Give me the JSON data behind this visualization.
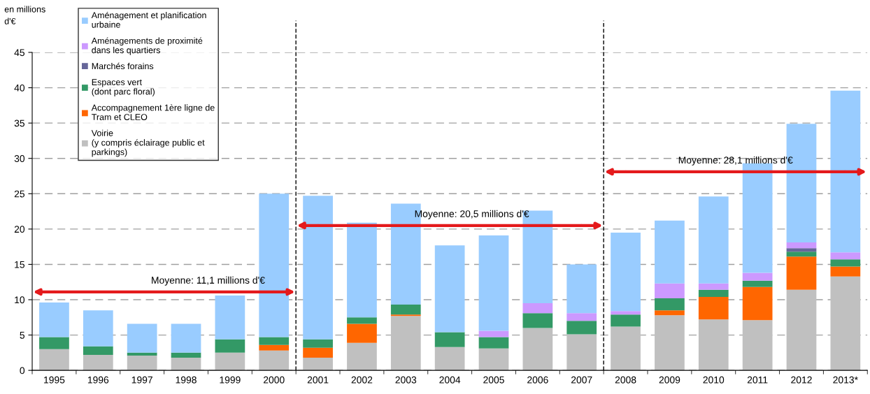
{
  "chart_data": {
    "type": "bar",
    "stacked": true,
    "ylabel": "en millions\nd'€",
    "categories": [
      "1995",
      "1996",
      "1997",
      "1998",
      "1999",
      "2000",
      "2001",
      "2002",
      "2003",
      "2004",
      "2005",
      "2006",
      "2007",
      "2008",
      "2009",
      "2010",
      "2011",
      "2012",
      "2013*"
    ],
    "series": [
      {
        "name": "Voirie\n(y compris éclairage public et\nparkings)",
        "color": "#c0c0c0",
        "values": [
          3.0,
          2.2,
          2.1,
          1.8,
          2.5,
          2.8,
          1.8,
          3.9,
          7.7,
          3.3,
          3.1,
          6.0,
          5.1,
          6.2,
          7.8,
          7.2,
          7.1,
          11.4,
          13.3
        ]
      },
      {
        "name": "Accompagnement 1ère ligne de\nTram et CLEO",
        "color": "#ff6600",
        "values": [
          0,
          0,
          0,
          0,
          0,
          0.8,
          1.4,
          2.7,
          0.2,
          0,
          0,
          0,
          0,
          0,
          0.7,
          3.2,
          4.7,
          4.7,
          1.4
        ]
      },
      {
        "name": "Espaces vert\n(dont parc floral)",
        "color": "#339966",
        "values": [
          1.7,
          1.2,
          0.4,
          0.7,
          1.9,
          1.1,
          1.2,
          0.9,
          1.4,
          2.1,
          1.6,
          2.1,
          1.9,
          1.7,
          1.7,
          1.0,
          0.9,
          0.7,
          1.0
        ]
      },
      {
        "name": "Marchés forains",
        "color": "#666699",
        "values": [
          0,
          0,
          0,
          0,
          0,
          0,
          0,
          0,
          0,
          0,
          0,
          0,
          0,
          0,
          0,
          0,
          0,
          0.5,
          0
        ]
      },
      {
        "name": "Aménagements de proximité\ndans les quartiers",
        "color": "#cc99ff",
        "values": [
          0,
          0,
          0,
          0,
          0,
          0,
          0,
          0,
          0,
          0,
          0.9,
          1.4,
          1.1,
          0.5,
          2.1,
          0.9,
          1.1,
          0.8,
          1.0
        ]
      },
      {
        "name": "Aménagement et planification\nurbaine",
        "color": "#99ccff",
        "values": [
          4.9,
          5.1,
          4.1,
          4.1,
          6.2,
          20.3,
          20.3,
          13.4,
          14.3,
          12.3,
          13.5,
          13.1,
          6.9,
          11.1,
          8.9,
          12.3,
          15.5,
          16.8,
          22.9
        ]
      },
      {
        "type": "line",
        "color": "#e41a1c",
        "values": [
          11.1,
          11.1,
          11.1,
          11.1,
          11.1,
          11.1,
          null,
          null,
          null,
          null,
          null,
          null,
          null,
          null,
          null,
          null,
          null,
          null,
          null
        ]
      },
      {
        "type": "line",
        "color": "#e41a1c",
        "values": [
          null,
          null,
          null,
          null,
          null,
          null,
          20.5,
          20.5,
          20.5,
          20.5,
          20.5,
          20.5,
          20.5,
          null,
          null,
          null,
          null,
          null,
          null
        ]
      },
      {
        "type": "line",
        "color": "#e41a1c",
        "values": [
          null,
          null,
          null,
          null,
          null,
          null,
          null,
          null,
          null,
          null,
          null,
          null,
          null,
          28.1,
          28.1,
          28.1,
          28.1,
          28.1,
          28.1
        ]
      }
    ],
    "ylim": [
      0,
      45
    ],
    "yticks": [
      0,
      5,
      10,
      15,
      20,
      25,
      30,
      35,
      40,
      45
    ],
    "grid": "y",
    "legend": "top left",
    "annotations": [
      {
        "text": "Moyenne: 11,1 millions d'€",
        "x": "1998",
        "y": 11.1
      },
      {
        "text": "Moyenne: 20,5 millions d'€",
        "x": "2004",
        "y": 20.5
      },
      {
        "text": "Moyenne: 28,1 millions d'€",
        "x": "2010",
        "y": 28.1
      }
    ]
  }
}
